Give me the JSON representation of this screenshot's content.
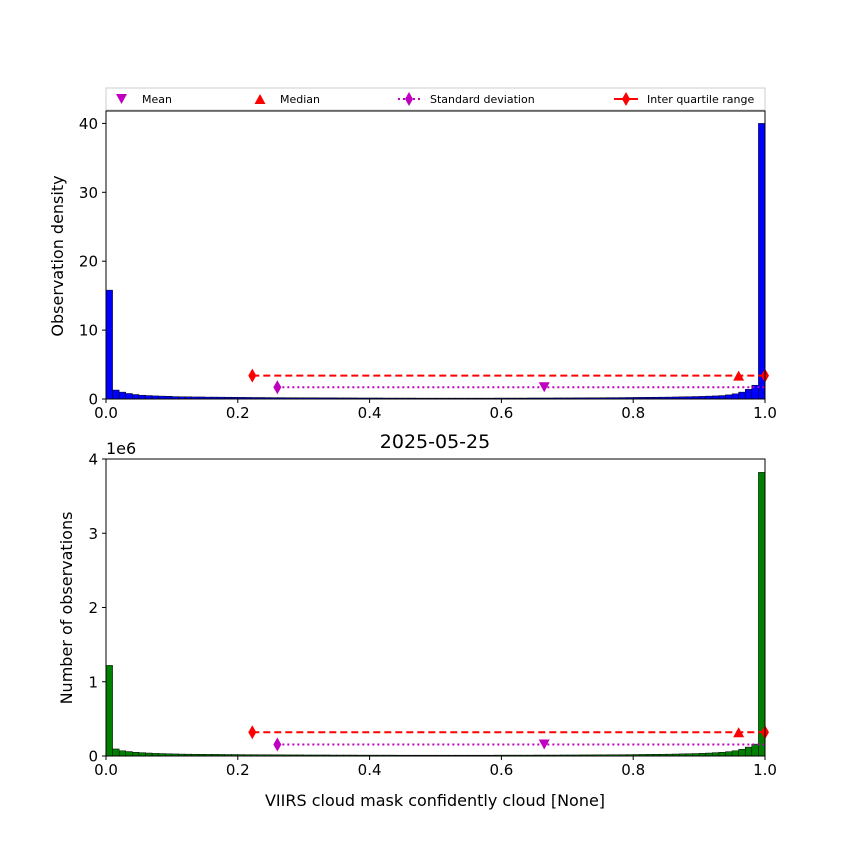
{
  "figure_title": "2025-05-25",
  "legend": {
    "placement": "top-outside",
    "entries": [
      {
        "label": "Mean",
        "marker": "triangle-down",
        "color": "#bf00bf"
      },
      {
        "label": "Median",
        "marker": "triangle-up",
        "color": "#ff0000"
      },
      {
        "label": "Standard deviation",
        "marker": "thin-diamond",
        "line": "dotted",
        "color": "#bf00bf"
      },
      {
        "label": "Inter quartile range",
        "marker": "thin-diamond",
        "line": "solid",
        "color": "#ff0000"
      }
    ]
  },
  "chart_data": [
    {
      "type": "bar",
      "panel": "top",
      "xlabel": "",
      "ylabel": "Observation density",
      "xlim": [
        0,
        1
      ],
      "ylim": [
        0,
        41.8
      ],
      "xticks": [
        "0.0",
        "0.2",
        "0.4",
        "0.6",
        "0.8",
        "1.0"
      ],
      "yticks": [
        "0",
        "10",
        "20",
        "30",
        "40"
      ],
      "ytick_values": [
        0,
        10,
        20,
        30,
        40
      ],
      "color": "#0000ff",
      "bins": 100,
      "values": [
        15.8,
        1.3,
        1.0,
        0.8,
        0.65,
        0.55,
        0.5,
        0.45,
        0.42,
        0.4,
        0.35,
        0.33,
        0.32,
        0.3,
        0.3,
        0.28,
        0.28,
        0.27,
        0.26,
        0.25,
        0.24,
        0.23,
        0.22,
        0.22,
        0.21,
        0.2,
        0.2,
        0.19,
        0.19,
        0.18,
        0.18,
        0.18,
        0.17,
        0.17,
        0.17,
        0.16,
        0.16,
        0.16,
        0.15,
        0.15,
        0.15,
        0.15,
        0.14,
        0.14,
        0.14,
        0.14,
        0.14,
        0.13,
        0.13,
        0.13,
        0.13,
        0.13,
        0.13,
        0.13,
        0.13,
        0.13,
        0.13,
        0.13,
        0.13,
        0.14,
        0.14,
        0.14,
        0.14,
        0.14,
        0.15,
        0.15,
        0.15,
        0.15,
        0.16,
        0.16,
        0.16,
        0.17,
        0.17,
        0.18,
        0.18,
        0.19,
        0.2,
        0.2,
        0.21,
        0.22,
        0.23,
        0.24,
        0.25,
        0.26,
        0.27,
        0.28,
        0.3,
        0.32,
        0.34,
        0.36,
        0.38,
        0.42,
        0.45,
        0.5,
        0.6,
        0.75,
        1.0,
        1.4,
        2.0,
        40.0
      ],
      "stats": {
        "mean": {
          "x": 0.665,
          "y": 1.7
        },
        "std": {
          "y": 1.7,
          "x_low": 0.26,
          "x_high": 1.0
        },
        "median": {
          "x": 0.96,
          "y": 3.4
        },
        "iqr": {
          "y": 3.4,
          "x_low": 0.222,
          "x_high": 1.0
        }
      }
    },
    {
      "type": "bar",
      "panel": "bottom",
      "title": "2025-05-25",
      "xlabel": "VIIRS cloud mask confidently cloud [None]",
      "ylabel": "Number of observations",
      "offset_label": "1e6",
      "xlim": [
        0,
        1
      ],
      "ylim": [
        0,
        4.0
      ],
      "xticks": [
        "0.0",
        "0.2",
        "0.4",
        "0.6",
        "0.8",
        "1.0"
      ],
      "yticks": [
        "0",
        "1",
        "2",
        "3",
        "4"
      ],
      "ytick_values": [
        0,
        1,
        2,
        3,
        4
      ],
      "color": "#008000",
      "bins": 100,
      "values": [
        1.22,
        0.095,
        0.07,
        0.06,
        0.05,
        0.045,
        0.04,
        0.035,
        0.033,
        0.03,
        0.028,
        0.026,
        0.025,
        0.024,
        0.023,
        0.022,
        0.022,
        0.021,
        0.02,
        0.02,
        0.019,
        0.018,
        0.018,
        0.017,
        0.017,
        0.016,
        0.016,
        0.015,
        0.015,
        0.015,
        0.014,
        0.014,
        0.014,
        0.014,
        0.013,
        0.013,
        0.013,
        0.013,
        0.012,
        0.012,
        0.012,
        0.012,
        0.012,
        0.012,
        0.011,
        0.011,
        0.011,
        0.011,
        0.011,
        0.011,
        0.011,
        0.011,
        0.011,
        0.011,
        0.011,
        0.011,
        0.011,
        0.011,
        0.011,
        0.012,
        0.012,
        0.012,
        0.012,
        0.012,
        0.012,
        0.013,
        0.013,
        0.013,
        0.013,
        0.014,
        0.014,
        0.014,
        0.015,
        0.015,
        0.016,
        0.016,
        0.017,
        0.017,
        0.018,
        0.019,
        0.02,
        0.021,
        0.022,
        0.023,
        0.024,
        0.025,
        0.027,
        0.029,
        0.031,
        0.033,
        0.036,
        0.04,
        0.045,
        0.05,
        0.058,
        0.07,
        0.09,
        0.12,
        0.16,
        3.82
      ],
      "stats": {
        "mean": {
          "x": 0.665,
          "y": 0.155
        },
        "std": {
          "y": 0.155,
          "x_low": 0.26,
          "x_high": 1.0
        },
        "median": {
          "x": 0.96,
          "y": 0.32
        },
        "iqr": {
          "y": 0.32,
          "x_low": 0.222,
          "x_high": 1.0
        }
      }
    }
  ]
}
